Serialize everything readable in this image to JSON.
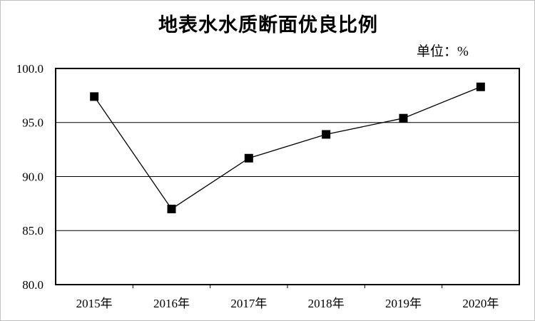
{
  "page": {
    "background_color": "#ffffff",
    "frame_border_color": "#c0c0c0"
  },
  "chart_data": {
    "type": "line",
    "title": "地表水水质断面优良比例",
    "unit_label": "单位：%",
    "categories": [
      "2015年",
      "2016年",
      "2017年",
      "2018年",
      "2019年",
      "2020年"
    ],
    "series": [
      {
        "name": "地表水水质断面优良比例",
        "values": [
          97.4,
          87.0,
          91.7,
          93.9,
          95.4,
          98.3
        ]
      }
    ],
    "ylim": [
      80.0,
      100.0
    ],
    "ytick_step": 5.0,
    "ytick_labels": [
      "100.0",
      "95.0",
      "90.0",
      "85.0",
      "80.0"
    ],
    "xlabel": "",
    "ylabel": "",
    "grid": "horizontal",
    "legend": "none",
    "line_color": "#000000",
    "marker": "square",
    "marker_color": "#000000",
    "axis_color": "#000000",
    "text_color": "#000000"
  }
}
